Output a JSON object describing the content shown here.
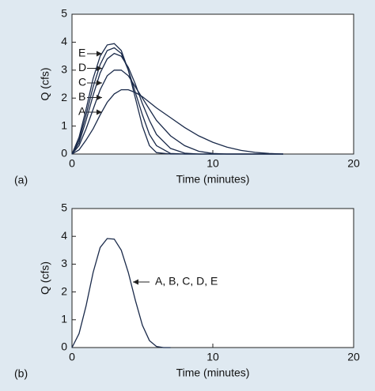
{
  "chart_data": [
    {
      "type": "line",
      "panel_label": "(a)",
      "x_label": "Time (minutes)",
      "y_label": "Q (cfs)",
      "xlim": [
        0,
        20
      ],
      "ylim": [
        0,
        5
      ],
      "xticks": [
        0,
        10,
        20
      ],
      "yticks": [
        0,
        1,
        2,
        3,
        4,
        5
      ],
      "x": [
        0,
        0.5,
        1,
        1.5,
        2,
        2.5,
        3,
        3.5,
        4,
        4.5,
        5,
        5.5,
        6,
        7,
        8,
        9,
        10,
        11,
        12,
        13,
        14,
        15
      ],
      "series": [
        {
          "name": "A",
          "color": "#1a2a4a",
          "values": [
            0,
            0.15,
            0.5,
            0.9,
            1.4,
            1.85,
            2.15,
            2.3,
            2.3,
            2.2,
            2.05,
            1.85,
            1.65,
            1.3,
            0.95,
            0.65,
            0.42,
            0.25,
            0.13,
            0.06,
            0.02,
            0
          ]
        },
        {
          "name": "B",
          "color": "#1a2a4a",
          "values": [
            0,
            0.3,
            0.9,
            1.6,
            2.3,
            2.8,
            3.0,
            3.0,
            2.8,
            2.4,
            2.0,
            1.6,
            1.2,
            0.65,
            0.3,
            0.1,
            0.02,
            0,
            0,
            0,
            0,
            0
          ]
        },
        {
          "name": "C",
          "color": "#1a2a4a",
          "values": [
            0,
            0.4,
            1.2,
            2.1,
            2.9,
            3.4,
            3.6,
            3.5,
            3.1,
            2.5,
            1.8,
            1.2,
            0.7,
            0.2,
            0.03,
            0,
            0,
            0,
            0,
            0,
            0,
            0
          ]
        },
        {
          "name": "D",
          "color": "#1a2a4a",
          "values": [
            0,
            0.5,
            1.4,
            2.4,
            3.2,
            3.7,
            3.8,
            3.6,
            3.0,
            2.2,
            1.4,
            0.7,
            0.3,
            0.02,
            0,
            0,
            0,
            0,
            0,
            0,
            0,
            0
          ]
        },
        {
          "name": "E",
          "color": "#1a2a4a",
          "values": [
            0,
            0.6,
            1.6,
            2.7,
            3.5,
            3.9,
            3.95,
            3.7,
            3.0,
            2.0,
            1.0,
            0.3,
            0.05,
            0,
            0,
            0,
            0,
            0,
            0,
            0,
            0,
            0
          ]
        }
      ]
    },
    {
      "type": "line",
      "panel_label": "(b)",
      "x_label": "Time (minutes)",
      "y_label": "Q (cfs)",
      "xlim": [
        0,
        20
      ],
      "ylim": [
        0,
        5
      ],
      "xticks": [
        0,
        10,
        20
      ],
      "yticks": [
        0,
        1,
        2,
        3,
        4,
        5
      ],
      "x": [
        0,
        0.5,
        1,
        1.5,
        2,
        2.5,
        3,
        3.5,
        4,
        4.5,
        5,
        5.5,
        6,
        6.5,
        7
      ],
      "series": [
        {
          "name": "A, B, C, D, E",
          "color": "#1a2a4a",
          "values": [
            0,
            0.5,
            1.5,
            2.7,
            3.6,
            3.92,
            3.9,
            3.5,
            2.7,
            1.7,
            0.8,
            0.25,
            0.04,
            0,
            0
          ]
        }
      ]
    }
  ]
}
